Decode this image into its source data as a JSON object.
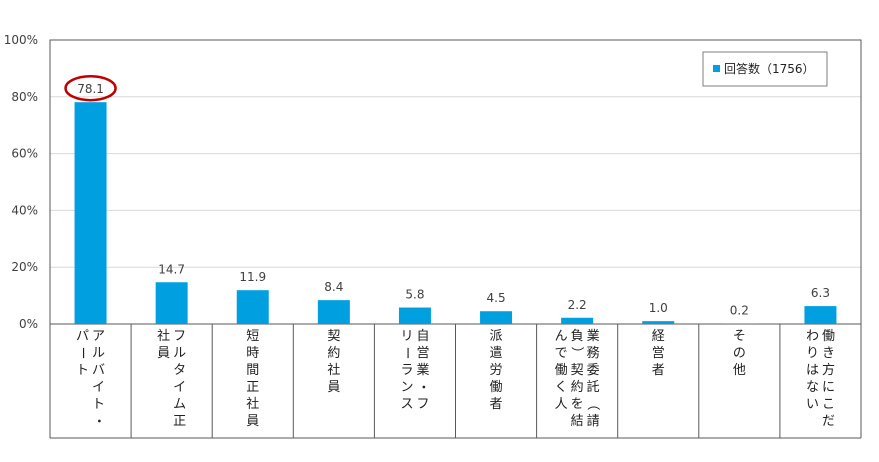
{
  "chart_data": {
    "type": "bar",
    "series": [
      {
        "name": "回答数（1756）",
        "values": [
          78.1,
          14.7,
          11.9,
          8.4,
          5.8,
          4.5,
          2.2,
          1.0,
          0.2,
          6.3
        ],
        "labels": [
          "78.1",
          "14.7",
          "11.9",
          "8.4",
          "5.8",
          "4.5",
          "2.2",
          "1.0",
          "0.2",
          "6.3"
        ]
      }
    ],
    "category_columns": [
      [
        "アルバイト・",
        "パート"
      ],
      [
        "フルタイム正",
        "社員"
      ],
      [
        "短時間正社員"
      ],
      [
        "契約社員"
      ],
      [
        "自営業・フ",
        "リーランス"
      ],
      [
        "派遣労働者"
      ],
      [
        "業務委託（請",
        "負）契約を結",
        "んで働く人"
      ],
      [
        "経営者"
      ],
      [
        "その他"
      ],
      [
        "働き方にこだ",
        "わりはない"
      ]
    ],
    "ylim": [
      0,
      100
    ],
    "yticks": [
      "0%",
      "20%",
      "40%",
      "60%",
      "80%",
      "100%"
    ],
    "grid": true,
    "legend": "top-right",
    "highlight": "78.1",
    "colors": {
      "bar": "#00A0E0",
      "highlight": "#C00000",
      "grid": "#D9D9D9",
      "axis": "#595959"
    }
  }
}
